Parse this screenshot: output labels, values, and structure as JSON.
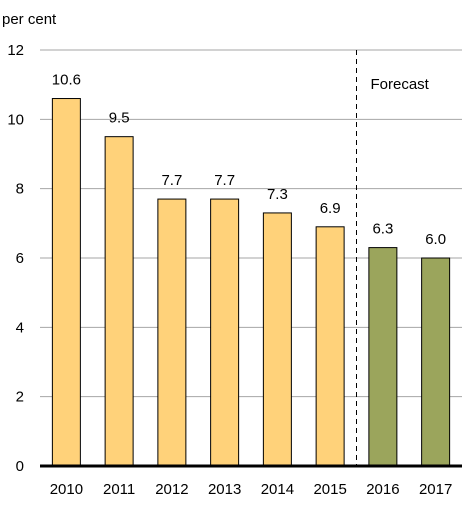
{
  "chart_data": {
    "type": "bar",
    "ylabel": "per cent",
    "ylim": [
      0,
      12
    ],
    "yticks": [
      0,
      2,
      4,
      6,
      8,
      10,
      12
    ],
    "yticklabels": [
      "0",
      "2",
      "4",
      "6",
      "8",
      "10",
      "12"
    ],
    "grid": true,
    "categories": [
      "2010",
      "2011",
      "2012",
      "2013",
      "2014",
      "2015",
      "2016",
      "2017"
    ],
    "values": [
      10.6,
      9.5,
      7.7,
      7.7,
      7.3,
      6.9,
      6.3,
      6.0
    ],
    "data_labels": [
      "10.6",
      "9.5",
      "7.7",
      "7.7",
      "7.3",
      "6.9",
      "6.3",
      "6.0"
    ],
    "forecast_from": "2016",
    "annotation": "Forecast",
    "colors": {
      "actual": "#FFD27A",
      "forecast": "#9BA55C",
      "bar_outline": "#000000",
      "grid": "#A6A6A6"
    }
  }
}
